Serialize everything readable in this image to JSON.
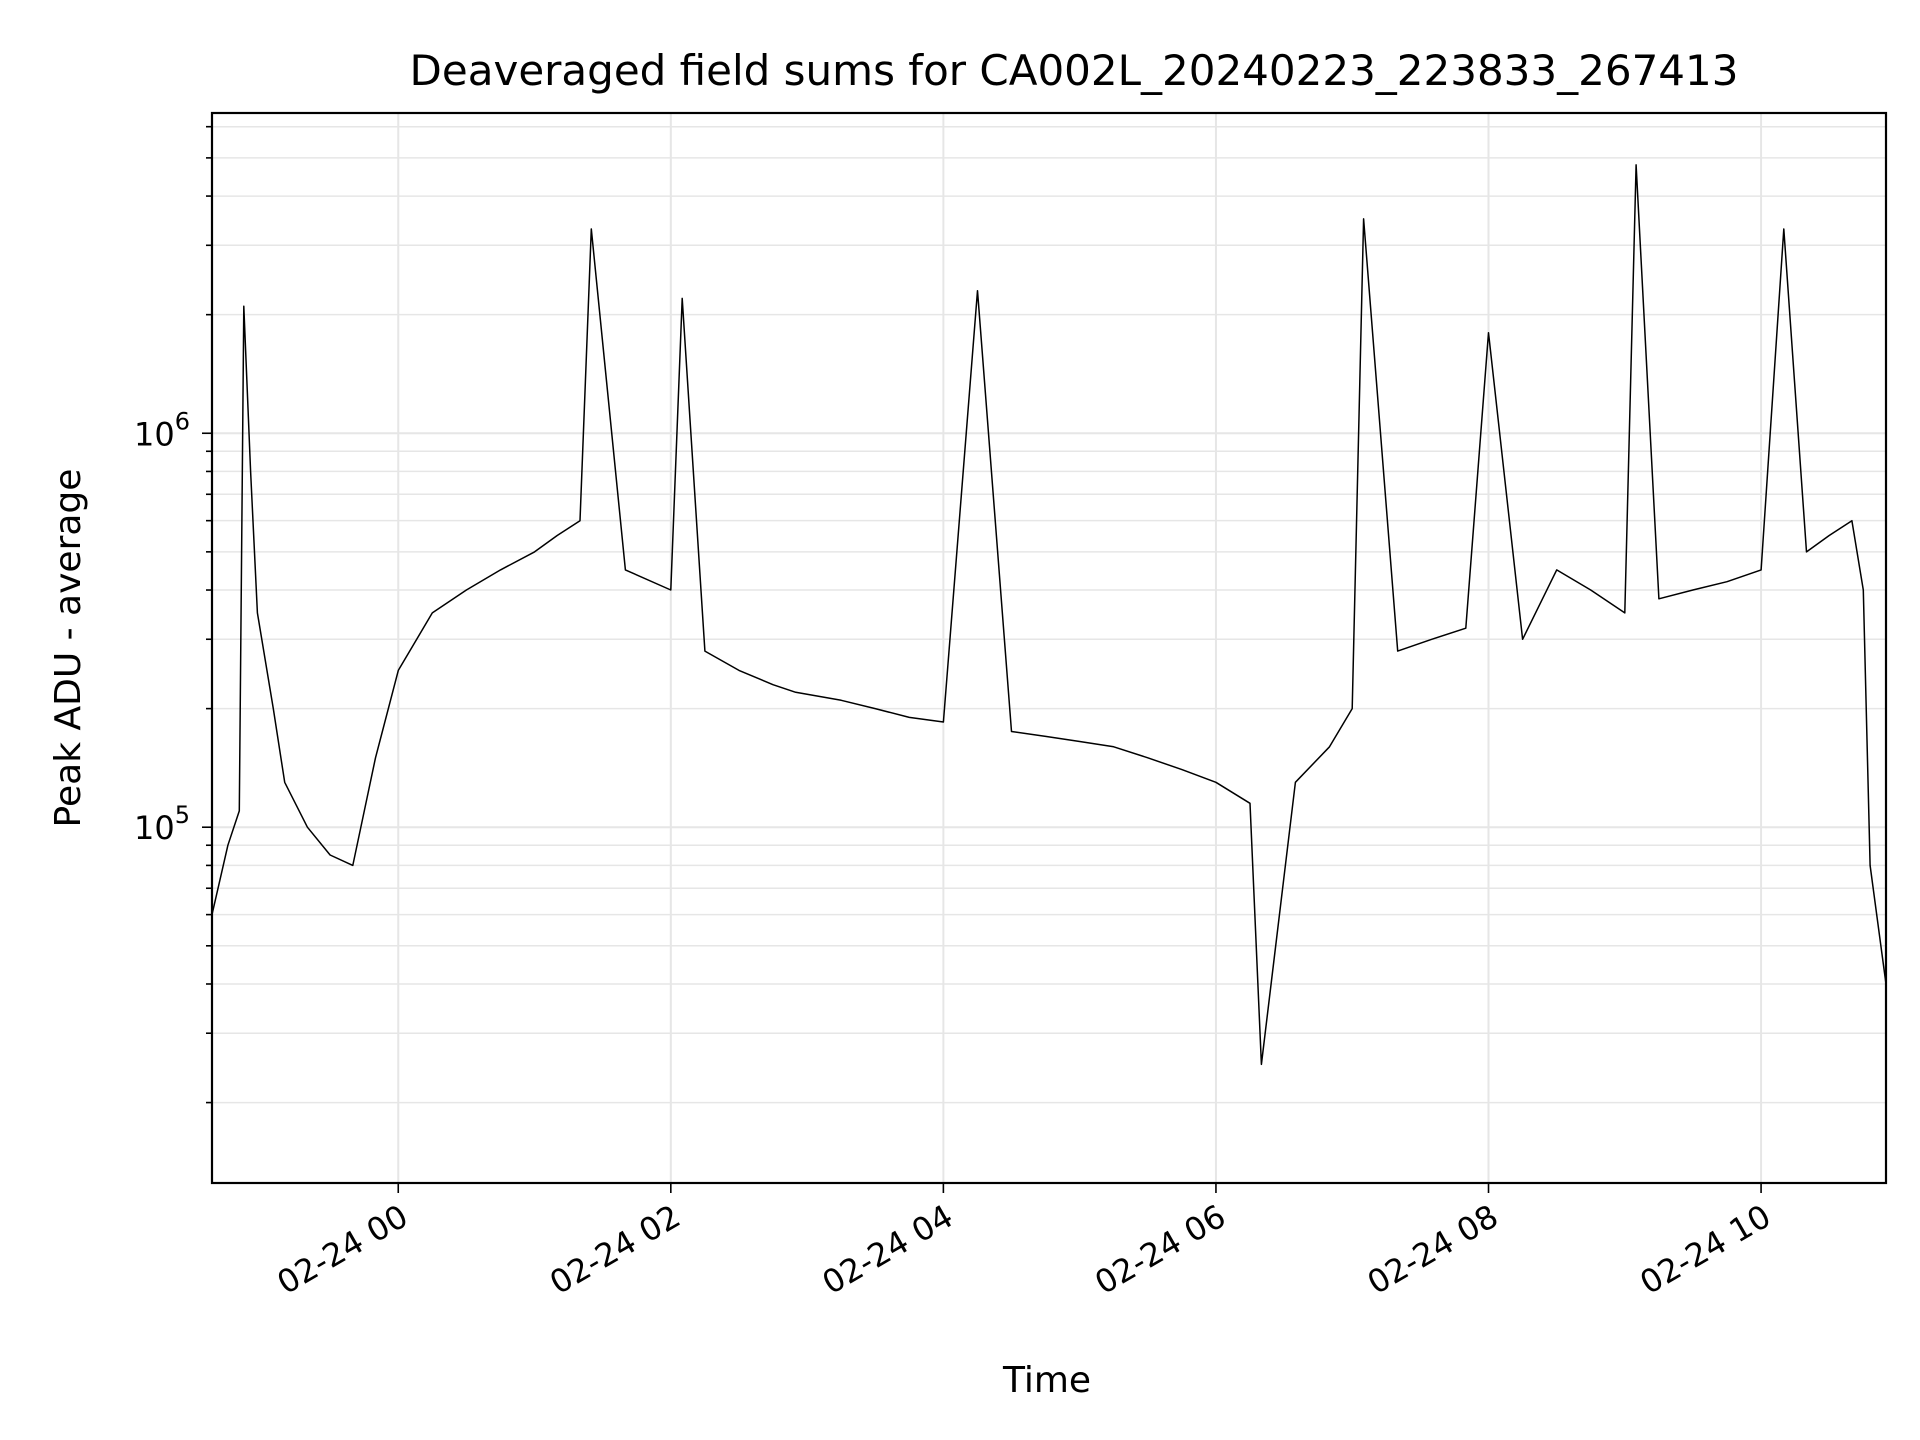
{
  "chart_data": {
    "type": "line",
    "title": "Deaveraged field sums for CA002L_20240223_223833_267413",
    "xlabel": "Time",
    "ylabel": "Peak ADU - average",
    "yscale": "log",
    "grid": true,
    "legend": "none",
    "line_color": "#000000",
    "x_range": [
      "2024-02-23 22:38",
      "2024-02-24 10:55"
    ],
    "ylim": [
      12500,
      6500000
    ],
    "x_ticks": [
      "02-24 00",
      "02-24 02",
      "02-24 04",
      "02-24 06",
      "02-24 08",
      "02-24 10"
    ],
    "y_ticks": [
      {
        "base": "10",
        "exp": "5",
        "value": 100000
      },
      {
        "base": "10",
        "exp": "6",
        "value": 1000000
      }
    ],
    "series": [
      {
        "x": [
          "2024-02-23 22:38",
          "2024-02-23 22:45",
          "2024-02-23 22:50",
          "2024-02-23 22:52",
          "2024-02-23 22:55",
          "2024-02-23 22:58",
          "2024-02-23 23:05",
          "2024-02-23 23:10",
          "2024-02-23 23:20",
          "2024-02-23 23:30",
          "2024-02-23 23:40",
          "2024-02-23 23:50",
          "2024-02-24 00:00",
          "2024-02-24 00:15",
          "2024-02-24 00:30",
          "2024-02-24 00:45",
          "2024-02-24 01:00",
          "2024-02-24 01:10",
          "2024-02-24 01:20",
          "2024-02-24 01:25",
          "2024-02-24 01:40",
          "2024-02-24 02:00",
          "2024-02-24 02:05",
          "2024-02-24 02:15",
          "2024-02-24 02:30",
          "2024-02-24 02:45",
          "2024-02-24 02:55",
          "2024-02-24 03:15",
          "2024-02-24 03:30",
          "2024-02-24 03:45",
          "2024-02-24 04:00",
          "2024-02-24 04:15",
          "2024-02-24 04:30",
          "2024-02-24 04:45",
          "2024-02-24 05:00",
          "2024-02-24 05:15",
          "2024-02-24 05:30",
          "2024-02-24 05:45",
          "2024-02-24 06:00",
          "2024-02-24 06:15",
          "2024-02-24 06:20",
          "2024-02-24 06:35",
          "2024-02-24 06:50",
          "2024-02-24 07:00",
          "2024-02-24 07:05",
          "2024-02-24 07:20",
          "2024-02-24 07:35",
          "2024-02-24 07:50",
          "2024-02-24 08:00",
          "2024-02-24 08:15",
          "2024-02-24 08:30",
          "2024-02-24 08:45",
          "2024-02-24 09:00",
          "2024-02-24 09:05",
          "2024-02-24 09:15",
          "2024-02-24 09:30",
          "2024-02-24 09:45",
          "2024-02-24 10:00",
          "2024-02-24 10:10",
          "2024-02-24 10:20",
          "2024-02-24 10:30",
          "2024-02-24 10:40",
          "2024-02-24 10:45",
          "2024-02-24 10:48",
          "2024-02-24 10:55"
        ],
        "y": [
          60000,
          90000,
          110000,
          2100000,
          800000,
          350000,
          200000,
          130000,
          100000,
          85000,
          80000,
          150000,
          250000,
          350000,
          400000,
          450000,
          500000,
          550000,
          600000,
          3300000,
          450000,
          400000,
          2200000,
          280000,
          250000,
          230000,
          220000,
          210000,
          200000,
          190000,
          185000,
          2300000,
          175000,
          170000,
          165000,
          160000,
          150000,
          140000,
          130000,
          115000,
          25000,
          130000,
          160000,
          200000,
          3500000,
          280000,
          300000,
          320000,
          1800000,
          300000,
          450000,
          400000,
          350000,
          4800000,
          380000,
          400000,
          420000,
          450000,
          3300000,
          500000,
          550000,
          600000,
          400000,
          80000,
          40000
        ]
      }
    ]
  }
}
